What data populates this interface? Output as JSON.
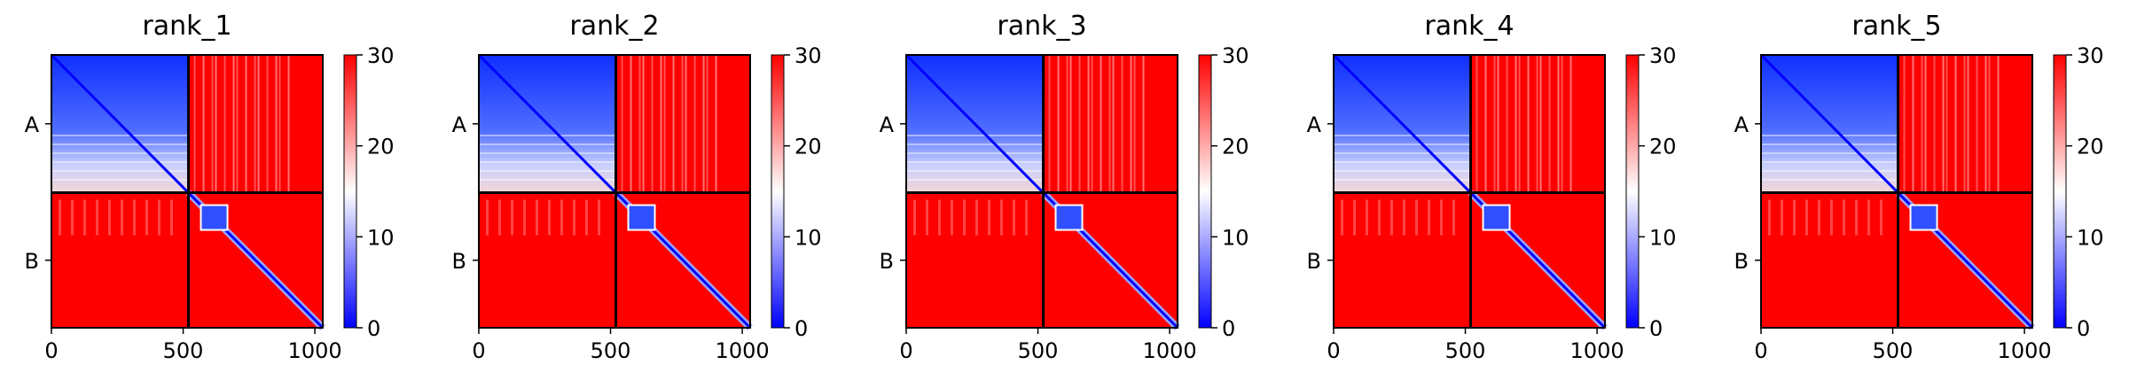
{
  "chart_data": [
    {
      "type": "heatmap",
      "title": "rank_1",
      "x_ticks": [
        "0",
        "500",
        "1000"
      ],
      "y_ticks": [
        "A",
        "B"
      ],
      "colorbar_ticks": [
        "0",
        "10",
        "20",
        "30"
      ],
      "colorbar_range": [
        0,
        30
      ],
      "colormap": [
        "#0000ff",
        "#ffffff",
        "#ff0000"
      ],
      "grid": false
    },
    {
      "type": "heatmap",
      "title": "rank_2",
      "x_ticks": [
        "0",
        "500",
        "1000"
      ],
      "y_ticks": [
        "A",
        "B"
      ],
      "colorbar_ticks": [
        "0",
        "10",
        "20",
        "30"
      ],
      "colorbar_range": [
        0,
        30
      ],
      "colormap": [
        "#0000ff",
        "#ffffff",
        "#ff0000"
      ],
      "grid": false
    },
    {
      "type": "heatmap",
      "title": "rank_3",
      "x_ticks": [
        "0",
        "500",
        "1000"
      ],
      "y_ticks": [
        "A",
        "B"
      ],
      "colorbar_ticks": [
        "0",
        "10",
        "20",
        "30"
      ],
      "colorbar_range": [
        0,
        30
      ],
      "colormap": [
        "#0000ff",
        "#ffffff",
        "#ff0000"
      ],
      "grid": false
    },
    {
      "type": "heatmap",
      "title": "rank_4",
      "x_ticks": [
        "0",
        "500",
        "1000"
      ],
      "y_ticks": [
        "A",
        "B"
      ],
      "colorbar_ticks": [
        "0",
        "10",
        "20",
        "30"
      ],
      "colorbar_range": [
        0,
        30
      ],
      "colormap": [
        "#0000ff",
        "#ffffff",
        "#ff0000"
      ],
      "grid": false
    },
    {
      "type": "heatmap",
      "title": "rank_5",
      "x_ticks": [
        "0",
        "500",
        "1000"
      ],
      "y_ticks": [
        "A",
        "B"
      ],
      "colorbar_ticks": [
        "0",
        "10",
        "20",
        "30"
      ],
      "colorbar_range": [
        0,
        30
      ],
      "colormap": [
        "#0000ff",
        "#ffffff",
        "#ff0000"
      ],
      "grid": false
    }
  ]
}
